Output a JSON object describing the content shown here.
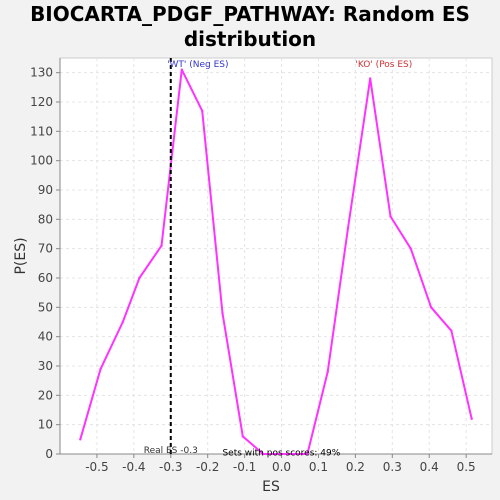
{
  "chart_data": {
    "type": "line",
    "title_line1": "BIOCARTA_PDGF_PATHWAY: Random ES",
    "title_line2": "distribution",
    "xlabel": "ES",
    "ylabel": "P(ES)",
    "xlim": [
      -0.6,
      0.57
    ],
    "ylim": [
      0,
      135
    ],
    "x_ticks": [
      -0.5,
      -0.4,
      -0.3,
      -0.2,
      -0.1,
      0.0,
      0.1,
      0.2,
      0.3,
      0.4,
      0.5
    ],
    "x_tick_labels": [
      "-0.5",
      "-0.4",
      "-0.3",
      "-0.2",
      "-0.1",
      "0.0",
      "0.1",
      "0.2",
      "0.3",
      "0.4",
      "0.5"
    ],
    "y_ticks": [
      0,
      10,
      20,
      30,
      40,
      50,
      60,
      70,
      80,
      90,
      100,
      110,
      120,
      130
    ],
    "y_tick_labels": [
      "0",
      "10",
      "20",
      "30",
      "40",
      "50",
      "60",
      "70",
      "80",
      "90",
      "100",
      "110",
      "120",
      "130"
    ],
    "grid": true,
    "series": [
      {
        "color": "#ff33ff",
        "x": [
          -0.545,
          -0.49,
          -0.43,
          -0.385,
          -0.325,
          -0.27,
          -0.215,
          -0.16,
          -0.105,
          -0.05,
          0.0,
          0.07,
          0.125,
          0.18,
          0.24,
          0.295,
          0.35,
          0.405,
          0.46,
          0.515
        ],
        "y": [
          5,
          29,
          45,
          60,
          71,
          131,
          117,
          48,
          6,
          0,
          0,
          0,
          28,
          77,
          128,
          81,
          70,
          50,
          42,
          12
        ]
      }
    ],
    "real_es": {
      "value": -0.3,
      "label": "Real ES -0.3",
      "color": "#000000"
    },
    "annotations": [
      {
        "text": "'WT' (Neg ES)",
        "x": -0.31,
        "y": 133,
        "color": "#3333cc"
      },
      {
        "text": "'KO' (Pos ES)",
        "x": 0.2,
        "y": 133,
        "color": "#cc3333"
      },
      {
        "text": "Sets with pos scores: 49%",
        "x": -0.16,
        "y": 0.5,
        "color": "#000000"
      }
    ]
  }
}
